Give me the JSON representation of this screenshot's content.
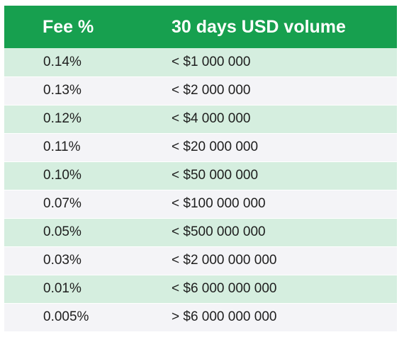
{
  "table": {
    "headers": {
      "fee": "Fee %",
      "volume": "30 days USD volume"
    },
    "rows": [
      {
        "fee": "0.14%",
        "volume": "< $1 000 000"
      },
      {
        "fee": "0.13%",
        "volume": "< $2 000 000"
      },
      {
        "fee": "0.12%",
        "volume": "< $4 000 000"
      },
      {
        "fee": "0.11%",
        "volume": "< $20 000 000"
      },
      {
        "fee": "0.10%",
        "volume": "< $50 000 000"
      },
      {
        "fee": "0.07%",
        "volume": "< $100 000 000"
      },
      {
        "fee": "0.05%",
        "volume": "< $500 000 000"
      },
      {
        "fee": "0.03%",
        "volume": "< $2 000 000 000"
      },
      {
        "fee": "0.01%",
        "volume": "< $6 000 000 000"
      },
      {
        "fee": "0.005%",
        "volume": "> $6 000 000 000"
      }
    ]
  },
  "colors": {
    "header_background": "#17a04f",
    "header_text": "#ffffff",
    "row_green": "#d5eedf",
    "row_grey": "#f4f4f7"
  }
}
